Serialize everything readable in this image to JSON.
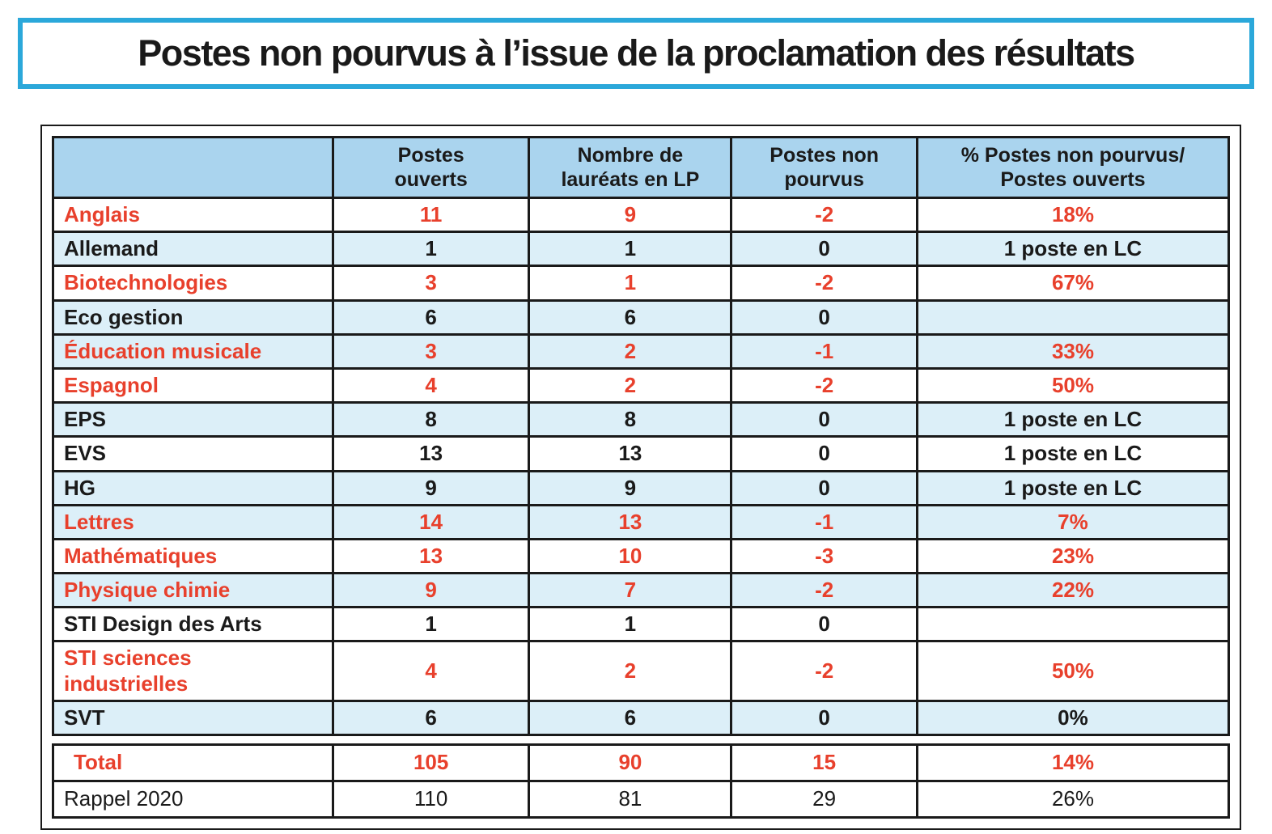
{
  "title": "Postes non pourvus à l’issue de la proclamation des résultats",
  "colors": {
    "accent_cyan": "#2BA8DA",
    "header_blue": "#AAD4EE",
    "row_blue": "#DCEFF8",
    "text_red": "#E8402C",
    "text_black": "#1A1A1A"
  },
  "table": {
    "columns": [
      "",
      "Postes\nouverts",
      "Nombre de\nlauréats en LP",
      "Postes non\npourvus",
      "% Postes non pourvus/\nPostes ouverts"
    ],
    "rows": [
      {
        "label": "Anglais",
        "values": [
          "11",
          "9",
          "-2",
          "18%"
        ],
        "color": "red",
        "bg": "white"
      },
      {
        "label": "Allemand",
        "values": [
          "1",
          "1",
          "0",
          "1 poste en LC"
        ],
        "color": "black",
        "bg": "blue"
      },
      {
        "label": "Biotechnologies",
        "values": [
          "3",
          "1",
          "-2",
          "67%"
        ],
        "color": "red",
        "bg": "white"
      },
      {
        "label": "Eco gestion",
        "values": [
          "6",
          "6",
          "0",
          ""
        ],
        "color": "black",
        "bg": "blue"
      },
      {
        "label": "Éducation musicale",
        "values": [
          "3",
          "2",
          "-1",
          "33%"
        ],
        "color": "red",
        "bg": "blue"
      },
      {
        "label": "Espagnol",
        "values": [
          "4",
          "2",
          "-2",
          "50%"
        ],
        "color": "red",
        "bg": "white"
      },
      {
        "label": "EPS",
        "values": [
          "8",
          "8",
          "0",
          "1 poste en LC"
        ],
        "color": "black",
        "bg": "blue"
      },
      {
        "label": "EVS",
        "values": [
          "13",
          "13",
          "0",
          "1 poste en LC"
        ],
        "color": "black",
        "bg": "white"
      },
      {
        "label": "HG",
        "values": [
          "9",
          "9",
          "0",
          "1 poste en LC"
        ],
        "color": "black",
        "bg": "blue"
      },
      {
        "label": "Lettres",
        "values": [
          "14",
          "13",
          "-1",
          "7%"
        ],
        "color": "red",
        "bg": "blue"
      },
      {
        "label": "Mathématiques",
        "values": [
          "13",
          "10",
          "-3",
          "23%"
        ],
        "color": "red",
        "bg": "white"
      },
      {
        "label": "Physique chimie",
        "values": [
          "9",
          "7",
          "-2",
          "22%"
        ],
        "color": "red",
        "bg": "blue"
      },
      {
        "label": "STI Design des Arts",
        "values": [
          "1",
          "1",
          "0",
          ""
        ],
        "color": "black",
        "bg": "white"
      },
      {
        "label": "STI sciences\nindustrielles",
        "values": [
          "4",
          "2",
          "-2",
          "50%"
        ],
        "color": "red",
        "bg": "white"
      },
      {
        "label": "SVT",
        "values": [
          "6",
          "6",
          "0",
          "0%"
        ],
        "color": "black",
        "bg": "blue"
      }
    ],
    "summary_rows": [
      {
        "label": "Total",
        "values": [
          "105",
          "90",
          "15",
          "14%"
        ],
        "color": "red",
        "bg": "white",
        "bold": true
      },
      {
        "label": "Rappel 2020",
        "values": [
          "110",
          "81",
          "29",
          "26%"
        ],
        "color": "black",
        "bg": "white",
        "bold": false
      }
    ]
  }
}
